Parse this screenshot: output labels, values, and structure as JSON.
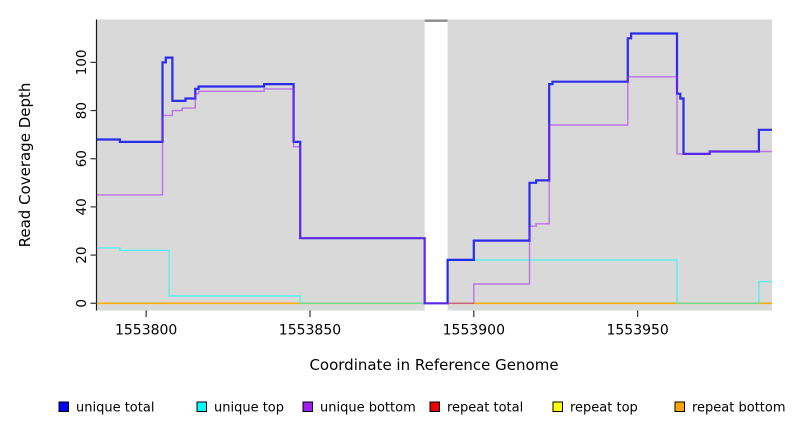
{
  "chart_data": {
    "type": "step-line",
    "title": "",
    "xlabel": "Coordinate in Reference Genome",
    "ylabel": "Read Coverage Depth",
    "xlim": [
      1553785,
      1553991
    ],
    "ylim": [
      -3,
      117.8
    ],
    "x_ticks": [
      1553800,
      1553850,
      1553900,
      1553950
    ],
    "y_ticks": [
      0,
      20,
      40,
      60,
      80,
      100
    ],
    "grid": false,
    "panel_bg": "#d9d9d9",
    "gap_band": {
      "x_start": 1553885,
      "x_end": 1553892,
      "fill": "#ffffff",
      "top_notch_color": "#8c8c8c"
    },
    "x_end": 1553991,
    "series": [
      {
        "name": "unique total",
        "color": "#0000EE",
        "points": [
          [
            1553785,
            68
          ],
          [
            1553792,
            67
          ],
          [
            1553805,
            100
          ],
          [
            1553806,
            102
          ],
          [
            1553808,
            84
          ],
          [
            1553812,
            85
          ],
          [
            1553815,
            89
          ],
          [
            1553816,
            90
          ],
          [
            1553836,
            91
          ],
          [
            1553845,
            67
          ],
          [
            1553847,
            27
          ],
          [
            1553885,
            0
          ],
          [
            1553892,
            18
          ],
          [
            1553900,
            26
          ],
          [
            1553917,
            50
          ],
          [
            1553919,
            51
          ],
          [
            1553923,
            91
          ],
          [
            1553924,
            92
          ],
          [
            1553947,
            110
          ],
          [
            1553948,
            112
          ],
          [
            1553962,
            87
          ],
          [
            1553963,
            85
          ],
          [
            1553964,
            62
          ],
          [
            1553972,
            63
          ],
          [
            1553987,
            72
          ]
        ]
      },
      {
        "name": "unique top",
        "color": "#00FFFF",
        "points": [
          [
            1553785,
            23
          ],
          [
            1553792,
            22
          ],
          [
            1553807,
            3
          ],
          [
            1553847,
            0
          ],
          [
            1553892,
            18
          ],
          [
            1553962,
            0
          ],
          [
            1553987,
            9
          ]
        ]
      },
      {
        "name": "unique bottom",
        "color": "#A020F0",
        "points": [
          [
            1553785,
            45
          ],
          [
            1553805,
            78
          ],
          [
            1553808,
            80
          ],
          [
            1553811,
            81
          ],
          [
            1553815,
            87
          ],
          [
            1553816,
            88
          ],
          [
            1553836,
            89
          ],
          [
            1553845,
            65
          ],
          [
            1553847,
            27
          ],
          [
            1553885,
            0
          ],
          [
            1553900,
            8
          ],
          [
            1553917,
            32
          ],
          [
            1553919,
            33
          ],
          [
            1553923,
            74
          ],
          [
            1553947,
            94
          ],
          [
            1553962,
            62
          ],
          [
            1553972,
            63
          ]
        ]
      },
      {
        "name": "repeat total",
        "color": "#EE0000",
        "points": [
          [
            1553785,
            0
          ]
        ]
      },
      {
        "name": "repeat top",
        "color": "#FFFF00",
        "points": [
          [
            1553785,
            0
          ]
        ]
      },
      {
        "name": "repeat bottom",
        "color": "#FFA500",
        "points": [
          [
            1553785,
            0
          ]
        ]
      }
    ],
    "legend": [
      {
        "label": "unique total",
        "color": "#0000FF"
      },
      {
        "label": "unique top",
        "color": "#00FFFF"
      },
      {
        "label": "unique bottom",
        "color": "#A020F0"
      },
      {
        "label": "repeat total",
        "color": "#EE0000"
      },
      {
        "label": "repeat top",
        "color": "#FFFF00"
      },
      {
        "label": "repeat bottom",
        "color": "#FFA500"
      }
    ]
  }
}
